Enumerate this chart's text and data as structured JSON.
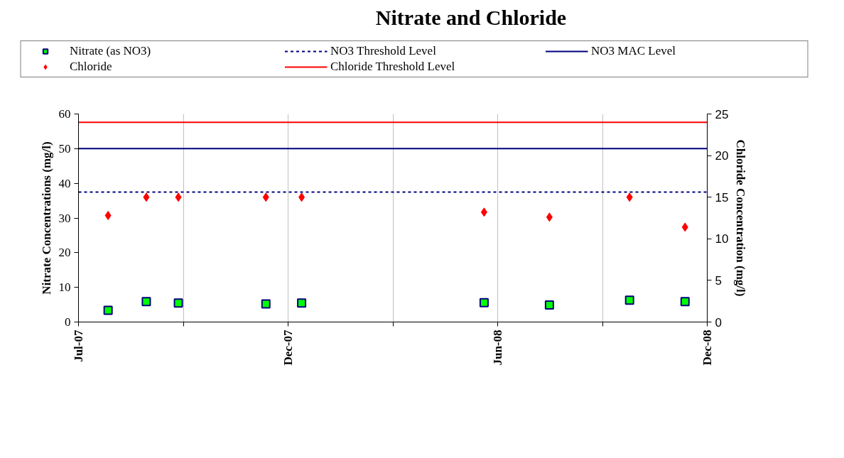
{
  "chart_data": {
    "type": "scatter",
    "title": "Nitrate and Chloride",
    "ylabel": "Nitrate Concentrations (mg/l)",
    "y2label": "Chloride Concentration (mg/l)",
    "xlim": [
      "2007-07-10",
      "2008-12-01"
    ],
    "xticks": [
      {
        "value": "2007-07-10",
        "label": "Jul-07"
      },
      {
        "value": "2007-10-03",
        "label": null
      },
      {
        "value": "2007-12-27",
        "label": "Dec-07"
      },
      {
        "value": "2008-03-21",
        "label": null
      },
      {
        "value": "2008-06-14",
        "label": "Jun-08"
      },
      {
        "value": "2008-09-07",
        "label": null
      },
      {
        "value": "2008-12-01",
        "label": "Dec-08"
      }
    ],
    "ylim": [
      0,
      60
    ],
    "yticks": [
      0,
      10,
      20,
      30,
      40,
      50,
      60
    ],
    "y2lim": [
      0,
      25
    ],
    "y2ticks": [
      0,
      5,
      10,
      15,
      20,
      25
    ],
    "grid": "x",
    "legend": "top",
    "series": [
      {
        "name": "Nitrate (as NO3)",
        "color": "#00ff00",
        "marker": "square",
        "x": [
          "2007-08-03",
          "2007-09-03",
          "2007-09-29",
          "2007-12-09",
          "2008-01-07",
          "2008-06-03",
          "2008-07-26",
          "2008-09-29",
          "2008-11-13"
        ],
        "values": [
          3.4,
          5.9,
          5.5,
          5.2,
          5.5,
          5.6,
          4.9,
          6.3,
          5.9
        ]
      },
      {
        "name": "Chloride",
        "color": "#ff0000",
        "marker": "diamond",
        "axis": "y2",
        "x": [
          "2007-08-03",
          "2007-09-03",
          "2007-09-29",
          "2007-12-09",
          "2008-01-07",
          "2008-06-03",
          "2008-07-26",
          "2008-09-29",
          "2008-11-13"
        ],
        "values": [
          12.8,
          15,
          15,
          15,
          15,
          13.2,
          12.6,
          15,
          11.4
        ]
      }
    ],
    "ref_lines": [
      {
        "axis": "y",
        "value": 37.5,
        "label": "NO3 Threshold Level",
        "color": "#000080",
        "line_style": "dotted"
      },
      {
        "axis": "y",
        "value": 50,
        "label": "NO3 MAC Level",
        "color": "#000080",
        "line_style": "solid"
      },
      {
        "axis": "y2",
        "value": 24,
        "label": "Chloride Threshold Level",
        "color": "#ff0000",
        "line_style": "solid"
      }
    ]
  }
}
